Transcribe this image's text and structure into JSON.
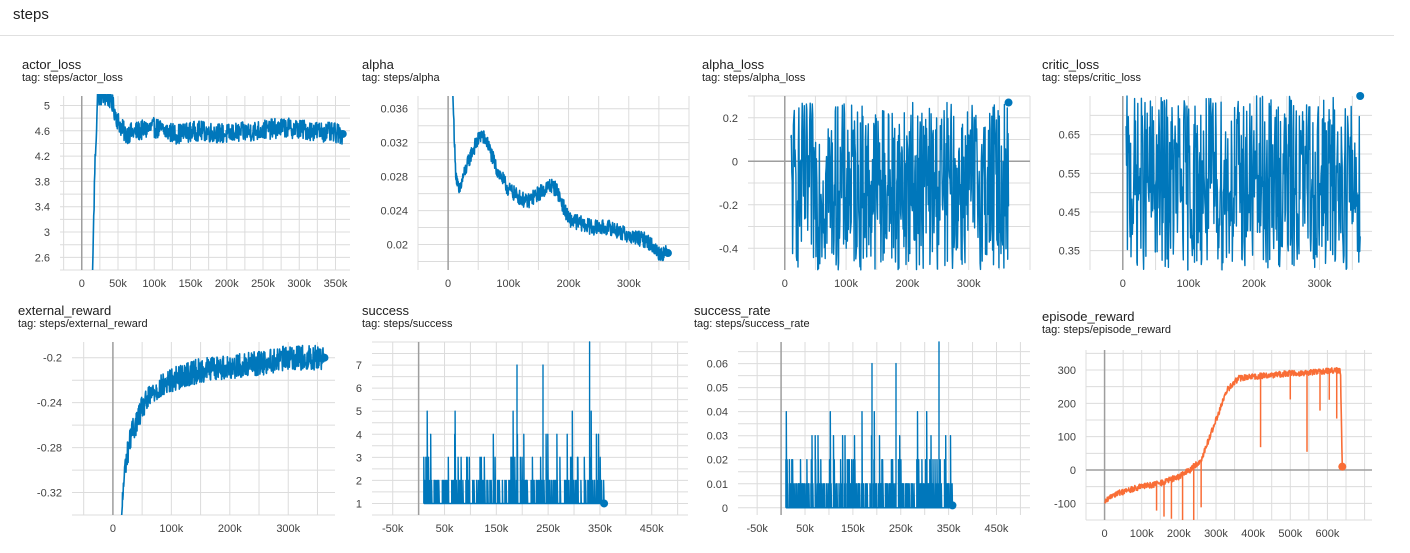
{
  "section": {
    "title": "steps"
  },
  "colors": {
    "blue": "#0077bb",
    "orange": "#f96d36",
    "grid": "#dcdcdc",
    "axis": "#9e9e9e"
  },
  "charts": [
    {
      "title": "actor_loss",
      "tag": "tag: steps/actor_loss"
    },
    {
      "title": "alpha",
      "tag": "tag: steps/alpha"
    },
    {
      "title": "alpha_loss",
      "tag": "tag: steps/alpha_loss"
    },
    {
      "title": "critic_loss",
      "tag": "tag: steps/critic_loss"
    },
    {
      "title": "external_reward",
      "tag": "tag: steps/external_reward"
    },
    {
      "title": "success",
      "tag": "tag: steps/success"
    },
    {
      "title": "success_rate",
      "tag": "tag: steps/success_rate"
    },
    {
      "title": "episode_reward",
      "tag": "tag: steps/episode_reward"
    }
  ],
  "chart_data": [
    {
      "type": "line",
      "title": "actor_loss",
      "color": "#0077bb",
      "xlim": [
        -30000,
        370000
      ],
      "ylim": [
        2.4,
        5.15
      ],
      "xticks": [
        0,
        50000,
        100000,
        150000,
        200000,
        250000,
        300000,
        350000
      ],
      "xtick_labels": [
        "0",
        "50k",
        "100k",
        "150k",
        "200k",
        "250k",
        "300k",
        "350k"
      ],
      "yticks": [
        2.6,
        3,
        3.4,
        3.8,
        4.2,
        4.6,
        5
      ],
      "ytick_labels": [
        "2.6",
        "3",
        "3.4",
        "3.8",
        "4.2",
        "4.6",
        "5"
      ],
      "series": [
        {
          "x": [
            15000,
            18000,
            22000,
            30000,
            40000,
            50000,
            60000,
            80000,
            100000,
            130000,
            160000,
            200000,
            240000,
            280000,
            320000,
            360000
          ],
          "y": [
            2.4,
            4.0,
            5.15,
            5.15,
            5.1,
            4.75,
            4.55,
            4.6,
            4.65,
            4.55,
            4.6,
            4.55,
            4.6,
            4.65,
            4.6,
            4.55
          ],
          "noise": 0.32
        }
      ]
    },
    {
      "type": "line",
      "title": "alpha",
      "color": "#0077bb",
      "xlim": [
        -50000,
        400000
      ],
      "ylim": [
        0.017,
        0.0375
      ],
      "xticks": [
        0,
        100000,
        200000,
        300000
      ],
      "xtick_labels": [
        "0",
        "100k",
        "200k",
        "300k"
      ],
      "yticks": [
        0.02,
        0.024,
        0.028,
        0.032,
        0.036
      ],
      "ytick_labels": [
        "0.02",
        "0.024",
        "0.028",
        "0.032",
        "0.036"
      ],
      "series": [
        {
          "x": [
            8000,
            12000,
            18000,
            25000,
            40000,
            55000,
            65000,
            80000,
            100000,
            130000,
            150000,
            170000,
            180000,
            200000,
            240000,
            270000,
            300000,
            330000,
            350000,
            365000
          ],
          "y": [
            0.0375,
            0.029,
            0.026,
            0.028,
            0.031,
            0.033,
            0.032,
            0.029,
            0.0265,
            0.025,
            0.026,
            0.027,
            0.0265,
            0.023,
            0.022,
            0.022,
            0.021,
            0.0205,
            0.019,
            0.019
          ],
          "noise": 0.0018
        }
      ]
    },
    {
      "type": "line",
      "title": "alpha_loss",
      "color": "#0077bb",
      "xlim": [
        -60000,
        400000
      ],
      "ylim": [
        -0.5,
        0.3
      ],
      "xticks": [
        0,
        100000,
        200000,
        300000
      ],
      "xtick_labels": [
        "0",
        "100k",
        "200k",
        "300k"
      ],
      "yticks": [
        -0.4,
        -0.2,
        0,
        0.2
      ],
      "ytick_labels": [
        "-0.4",
        "-0.2",
        "0",
        "0.2"
      ],
      "zero_line": 0,
      "series": [
        {
          "x": [
            10000,
            365000
          ],
          "y": [
            -0.5,
            0.27
          ],
          "mode": "dense"
        }
      ]
    },
    {
      "type": "line",
      "title": "critic_loss",
      "color": "#0077bb",
      "xlim": [
        -50000,
        380000
      ],
      "ylim": [
        0.3,
        0.75
      ],
      "xticks": [
        0,
        100000,
        200000,
        300000
      ],
      "xtick_labels": [
        "0",
        "100k",
        "200k",
        "300k"
      ],
      "yticks": [
        0.35,
        0.45,
        0.55,
        0.65
      ],
      "ytick_labels": [
        "0.35",
        "0.45",
        "0.55",
        "0.65"
      ],
      "series": [
        {
          "x": [
            5000,
            362000
          ],
          "y": [
            0.3,
            0.75
          ],
          "mode": "dense"
        }
      ]
    },
    {
      "type": "line",
      "title": "external_reward",
      "color": "#0077bb",
      "xlim": [
        -70000,
        380000
      ],
      "ylim": [
        -0.34,
        -0.186
      ],
      "xticks": [
        0,
        100000,
        200000,
        300000
      ],
      "xtick_labels": [
        "0",
        "100k",
        "200k",
        "300k"
      ],
      "yticks": [
        -0.32,
        -0.28,
        -0.24,
        -0.2
      ],
      "ytick_labels": [
        "-0.32",
        "-0.28",
        "-0.24",
        "-0.2"
      ],
      "series": [
        {
          "x": [
            15000,
            20000,
            30000,
            50000,
            70000,
            100000,
            130000,
            160000,
            200000,
            250000,
            300000,
            330000,
            362000
          ],
          "y": [
            -0.34,
            -0.3,
            -0.27,
            -0.245,
            -0.23,
            -0.22,
            -0.214,
            -0.21,
            -0.208,
            -0.205,
            -0.2,
            -0.2,
            -0.2
          ],
          "noise": 0.022
        }
      ]
    },
    {
      "type": "line",
      "title": "success",
      "color": "#0077bb",
      "xlim": [
        -90000,
        520000
      ],
      "ylim": [
        0.5,
        8
      ],
      "xticks": [
        -50000,
        50000,
        150000,
        250000,
        350000,
        450000
      ],
      "xtick_labels": [
        "-50k",
        "50k",
        "150k",
        "250k",
        "350k",
        "450k"
      ],
      "yticks": [
        1,
        2,
        3,
        4,
        5,
        6,
        7
      ],
      "ytick_labels": [
        "1",
        "2",
        "3",
        "4",
        "5",
        "6",
        "7"
      ],
      "series": [
        {
          "x": [
            10000,
            358000
          ],
          "y": [
            1,
            7
          ],
          "mode": "spikes"
        }
      ]
    },
    {
      "type": "line",
      "title": "success_rate",
      "color": "#0077bb",
      "xlim": [
        -90000,
        520000
      ],
      "ylim": [
        -0.003,
        0.069
      ],
      "xticks": [
        -50000,
        50000,
        150000,
        250000,
        350000,
        450000
      ],
      "xtick_labels": [
        "-50k",
        "50k",
        "150k",
        "250k",
        "350k",
        "450k"
      ],
      "yticks": [
        0,
        0.01,
        0.02,
        0.03,
        0.04,
        0.05,
        0.06
      ],
      "ytick_labels": [
        "0",
        "0.01",
        "0.02",
        "0.03",
        "0.04",
        "0.05",
        "0.06"
      ],
      "series": [
        {
          "x": [
            10000,
            358000
          ],
          "y": [
            0,
            0.069
          ],
          "mode": "spikes"
        }
      ]
    },
    {
      "type": "line",
      "title": "episode_reward",
      "color": "#f96d36",
      "xlim": [
        -50000,
        720000
      ],
      "ylim": [
        -150,
        360
      ],
      "xticks": [
        0,
        100000,
        200000,
        300000,
        400000,
        500000,
        600000
      ],
      "xtick_labels": [
        "0",
        "100k",
        "200k",
        "300k",
        "400k",
        "500k",
        "600k"
      ],
      "yticks": [
        -100,
        0,
        100,
        200,
        300
      ],
      "ytick_labels": [
        "-100",
        "0",
        "100",
        "200",
        "300"
      ],
      "zero_line": 0,
      "series": [
        {
          "x": [
            0,
            20000,
            50000,
            100000,
            150000,
            200000,
            230000,
            260000,
            300000,
            330000,
            360000,
            400000,
            450000,
            500000,
            550000,
            600000,
            635000,
            640000
          ],
          "y": [
            -100,
            -75,
            -65,
            -50,
            -40,
            -20,
            0,
            30,
            150,
            240,
            275,
            280,
            285,
            290,
            292,
            298,
            300,
            10
          ],
          "noise": 18
        }
      ]
    }
  ]
}
